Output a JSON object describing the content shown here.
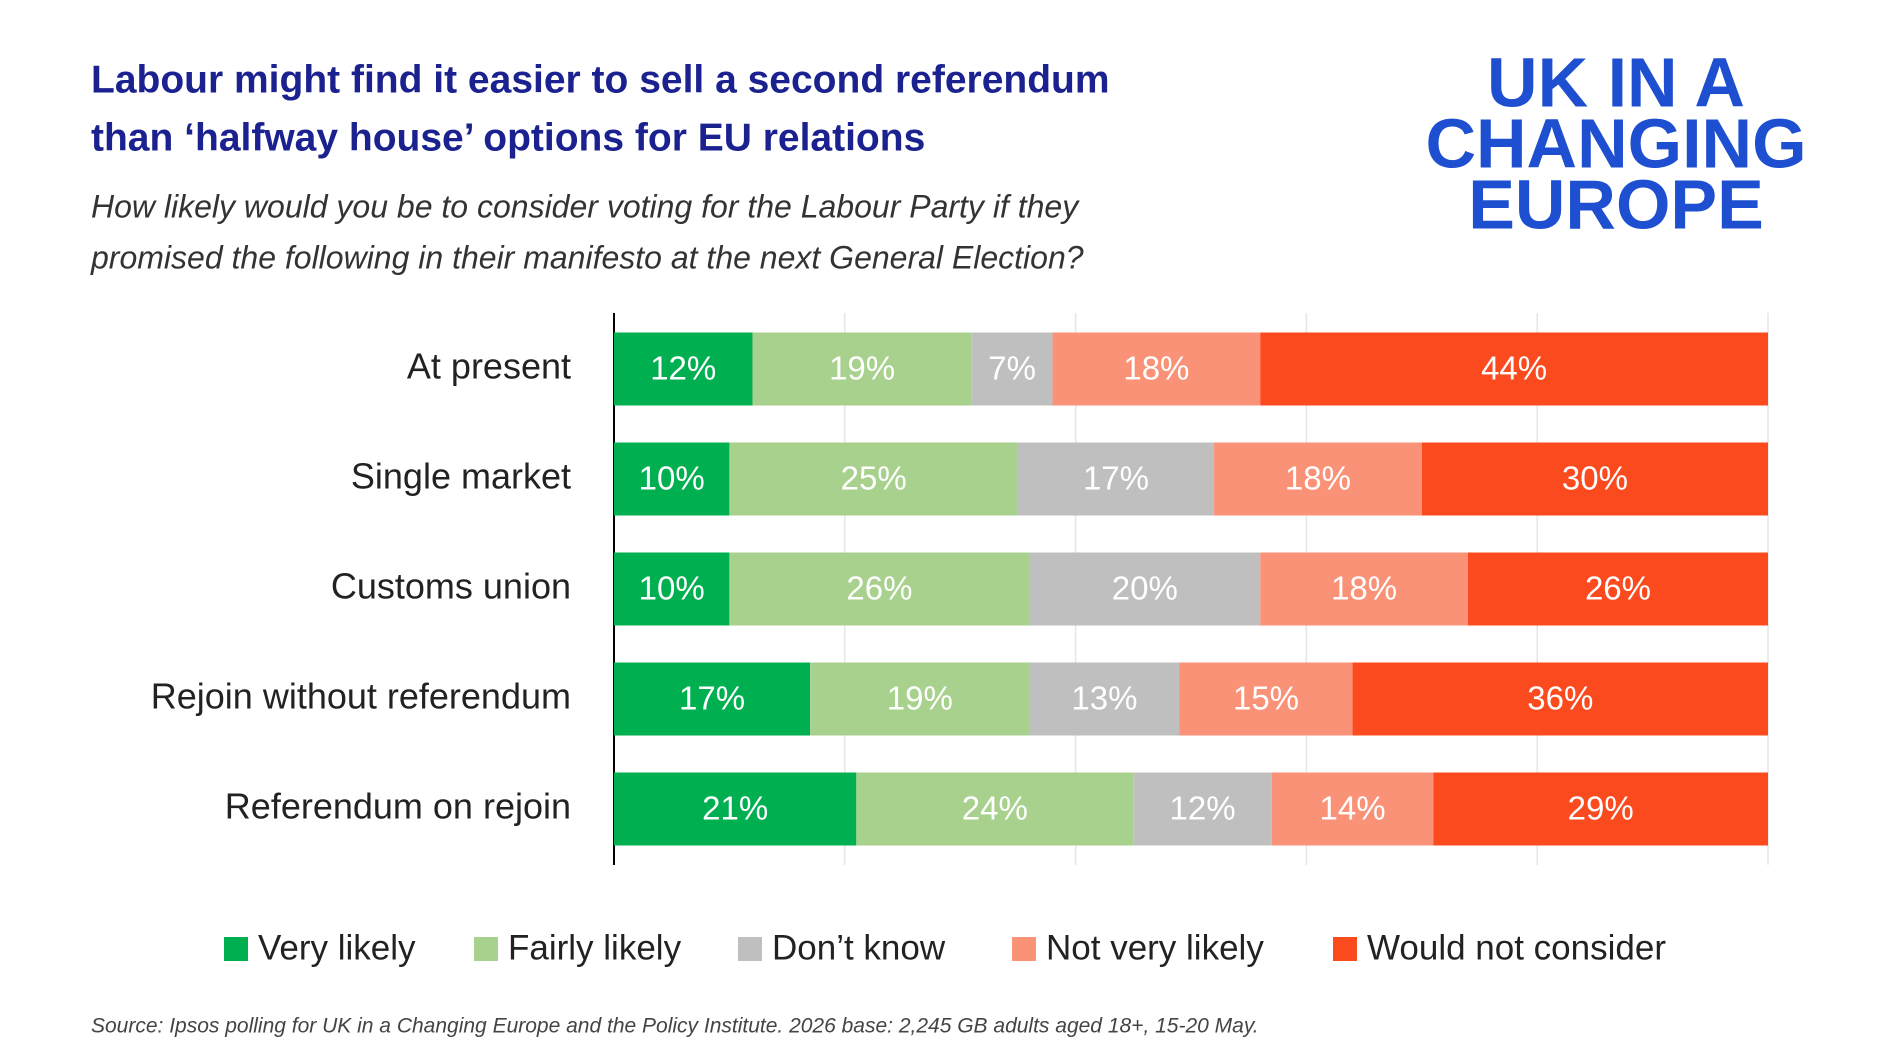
{
  "chart_data": {
    "type": "stacked-barh",
    "title_lines": [
      "Labour might find it easier to sell a second referendum",
      "than ‘halfway house’ options for EU relations"
    ],
    "subtitle_lines": [
      "How likely would you be to consider voting for the Labour Party if they",
      "promised the following in their manifesto at the next General Election?"
    ],
    "logo_lines": [
      "UK IN A",
      "CHANGING",
      "EUROPE"
    ],
    "source": "Source: Ipsos polling for UK in a Changing Europe and the Policy Institute. 2026 base: 2,245 GB adults aged 18+, 15-20 May.",
    "categories": [
      "At present",
      "Single market",
      "Customs union",
      "Rejoin without referendum",
      "Referendum on rejoin"
    ],
    "series": [
      {
        "name": "Very likely",
        "color": "#00b050",
        "values": [
          12,
          10,
          10,
          17,
          21
        ],
        "value_labels": [
          "12%",
          "10%",
          "10%",
          "17%",
          "21%"
        ]
      },
      {
        "name": "Fairly likely",
        "color": "#a9d18e",
        "values": [
          19,
          25,
          26,
          19,
          24
        ],
        "value_labels": [
          "19%",
          "25%",
          "26%",
          "19%",
          "24%"
        ]
      },
      {
        "name": "Don’t know",
        "color": "#bfbfbf",
        "values": [
          7,
          17,
          20,
          13,
          12
        ],
        "value_labels": [
          "7%",
          "17%",
          "20%",
          "13%",
          "12%"
        ]
      },
      {
        "name": "Not very likely",
        "color": "#fa9278",
        "values": [
          18,
          18,
          18,
          15,
          14
        ],
        "value_labels": [
          "18%",
          "18%",
          "18%",
          "15%",
          "14%"
        ]
      },
      {
        "name": "Would not consider",
        "color": "#fc4a1f",
        "values": [
          44,
          30,
          26,
          36,
          29
        ],
        "value_labels": [
          "44%",
          "30%",
          "26%",
          "36%",
          "29%"
        ]
      }
    ],
    "xlim": [
      0,
      100
    ],
    "xticks": [
      0,
      20,
      40,
      60,
      80,
      100
    ],
    "grid": true,
    "legend": "bottom"
  }
}
